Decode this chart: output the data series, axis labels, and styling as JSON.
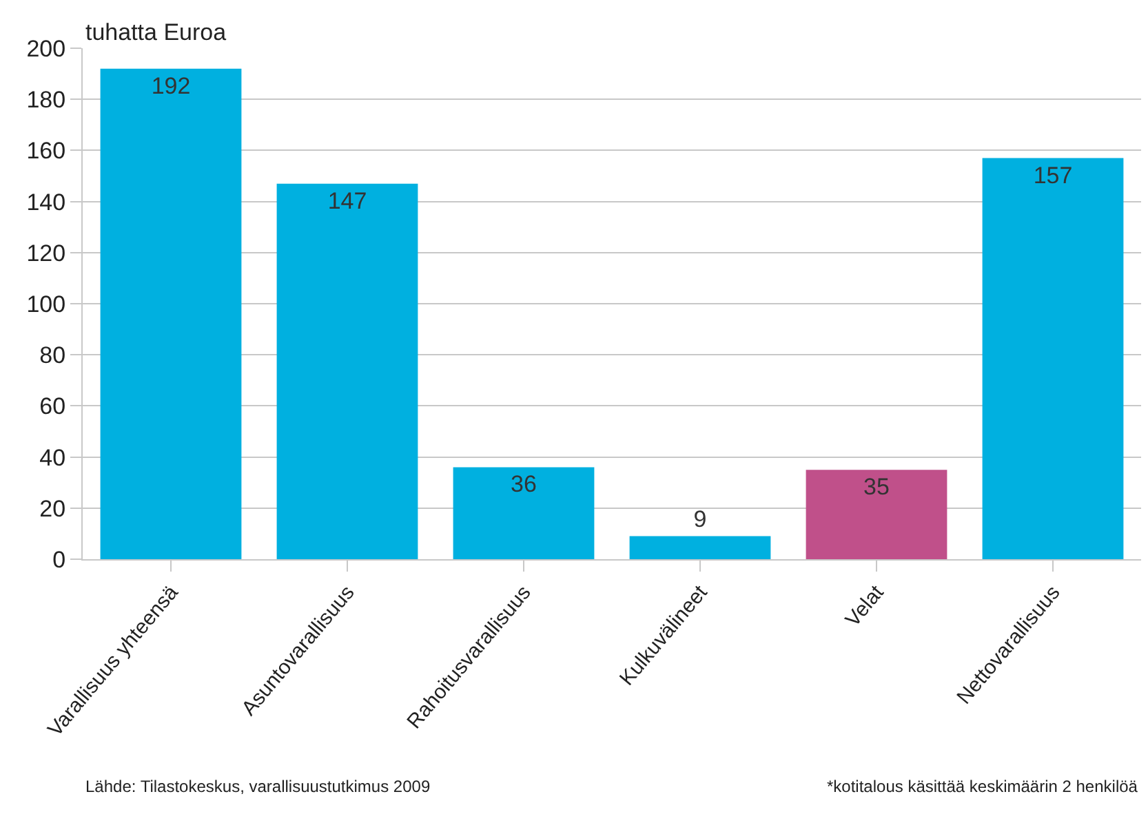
{
  "chart_data": {
    "type": "bar",
    "ylabel": "tuhatta Euroa",
    "categories": [
      "Varallisuus yhteensä",
      "Asuntovarallisuus",
      "Rahoitusvarallisuus",
      "Kulkuvälineet",
      "Velat",
      "Nettovarallisuus"
    ],
    "values": [
      192,
      147,
      36,
      9,
      35,
      157
    ],
    "colors": [
      "#00b0e0",
      "#00b0e0",
      "#00b0e0",
      "#00b0e0",
      "#c0508a",
      "#00b0e0"
    ],
    "ylim": [
      0,
      200
    ],
    "yticks": [
      0,
      20,
      40,
      60,
      80,
      100,
      120,
      140,
      160,
      180,
      200
    ],
    "grid": "y",
    "data_labels": true,
    "legend": false,
    "annotations": [
      "Lähde: Tilastokeskus, varallisuustutkimus 2009",
      "*kotitalous käsittää keskimäärin 2 henkilöä"
    ]
  }
}
